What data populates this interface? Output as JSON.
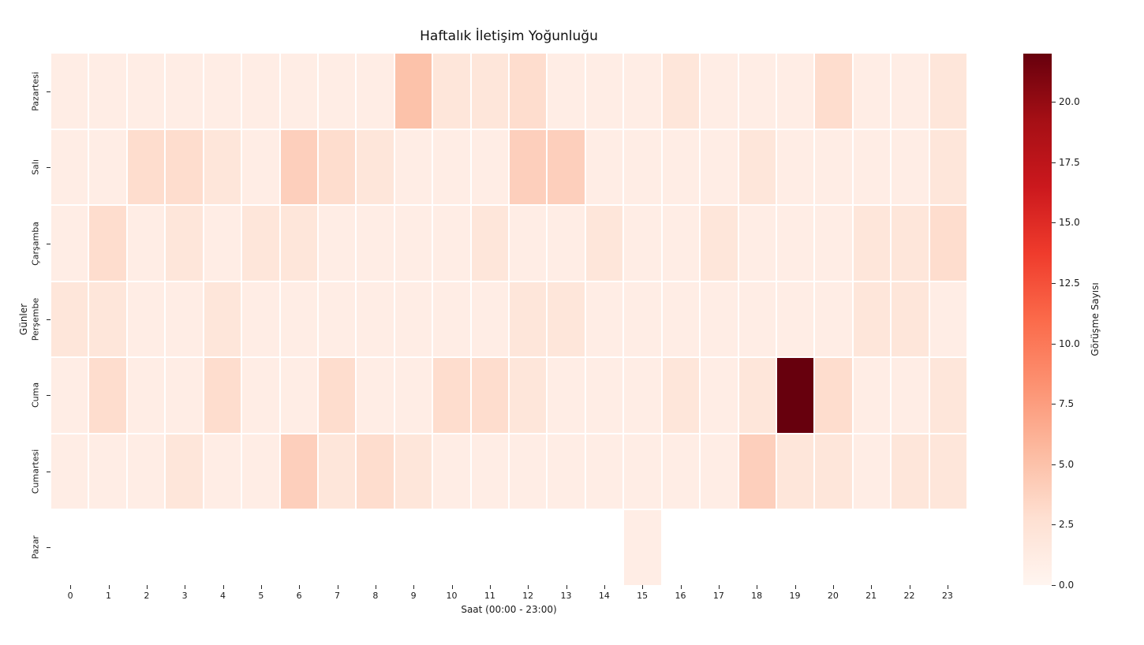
{
  "title": "Haftalık İletişim Yoğunluğu",
  "chart_data": {
    "type": "heatmap",
    "title": "Haftalık İletişim Yoğunluğu",
    "xlabel": "Saat (00:00 - 23:00)",
    "ylabel": "Günler",
    "x_ticks": [
      "0",
      "1",
      "2",
      "3",
      "4",
      "5",
      "6",
      "7",
      "8",
      "9",
      "10",
      "11",
      "12",
      "13",
      "14",
      "15",
      "16",
      "17",
      "18",
      "19",
      "20",
      "21",
      "22",
      "23"
    ],
    "y_ticks": [
      "Pazartesi",
      "Salı",
      "Çarşamba",
      "Perşembe",
      "Cuma",
      "Cumartesi",
      "Pazar"
    ],
    "colormap": "Reds",
    "colormap_stops": [
      "#fff5f0",
      "#fee0d2",
      "#fcbba1",
      "#fc9272",
      "#fb6a4a",
      "#ef3b2c",
      "#cb181d",
      "#a50f15",
      "#67000d"
    ],
    "missing_color": "#ffffff",
    "vmin": 0,
    "vmax": 22,
    "grid_line_color": "#ffffff",
    "colorbar": {
      "label": "Görüşme Sayısı",
      "tick_labels": [
        "0.0",
        "2.5",
        "5.0",
        "7.5",
        "10.0",
        "12.5",
        "15.0",
        "17.5",
        "20.0"
      ]
    },
    "values": [
      [
        1,
        1,
        1,
        1,
        1,
        1,
        1,
        1,
        1,
        5,
        2,
        2,
        3,
        1,
        1,
        1,
        2,
        1,
        1,
        1,
        3,
        1,
        1,
        2
      ],
      [
        1,
        1,
        3,
        3,
        2,
        1,
        4,
        3,
        2,
        1,
        1,
        1,
        4,
        4,
        1,
        1,
        1,
        1,
        2,
        1,
        1,
        1,
        1,
        2
      ],
      [
        1,
        3,
        1,
        2,
        1,
        2,
        2,
        1,
        1,
        1,
        1,
        2,
        1,
        1,
        2,
        1,
        1,
        2,
        1,
        1,
        1,
        2,
        2,
        3
      ],
      [
        2,
        2,
        1,
        1,
        2,
        1,
        1,
        1,
        1,
        1,
        1,
        1,
        2,
        2,
        1,
        1,
        1,
        1,
        1,
        1,
        1,
        2,
        2,
        1
      ],
      [
        1,
        3,
        1,
        1,
        3,
        1,
        1,
        3,
        1,
        1,
        3,
        3,
        2,
        1,
        1,
        1,
        2,
        1,
        2,
        22,
        3,
        1,
        1,
        2
      ],
      [
        1,
        1,
        1,
        2,
        1,
        1,
        4,
        2,
        3,
        2,
        1,
        1,
        1,
        1,
        1,
        1,
        1,
        1,
        4,
        2,
        2,
        1,
        2,
        2
      ],
      [
        null,
        null,
        null,
        null,
        null,
        null,
        null,
        null,
        null,
        null,
        null,
        null,
        null,
        null,
        null,
        1,
        null,
        null,
        null,
        null,
        null,
        null,
        null,
        null
      ]
    ]
  }
}
